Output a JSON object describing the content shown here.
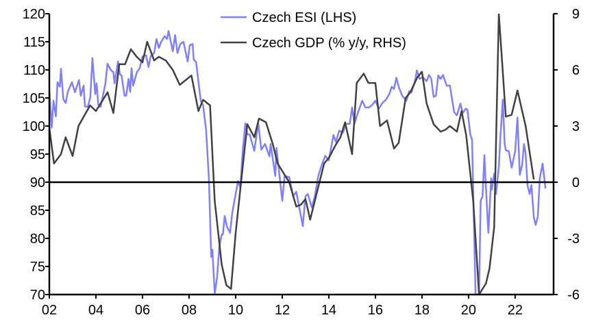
{
  "chart_data": {
    "type": "line",
    "title": "",
    "xlabel": "",
    "ylabel_left": "",
    "ylabel_right": "",
    "x_range": [
      2002.0,
      2023.65
    ],
    "x_tick_labels": [
      "02",
      "04",
      "06",
      "08",
      "10",
      "12",
      "14",
      "16",
      "18",
      "20",
      "22"
    ],
    "x_tick_years": [
      2002,
      2004,
      2006,
      2008,
      2010,
      2012,
      2014,
      2016,
      2018,
      2020,
      2022
    ],
    "y_left": {
      "range": [
        70,
        120
      ],
      "ticks": [
        70,
        75,
        80,
        85,
        90,
        95,
        100,
        105,
        110,
        115,
        120
      ],
      "tick_labels": [
        "70",
        "75",
        "80",
        "85",
        "90",
        "95",
        "100",
        "105",
        "110",
        "115",
        "120"
      ]
    },
    "y_right": {
      "range": [
        -6,
        9
      ],
      "ticks": [
        -6,
        -3,
        0,
        3,
        6,
        9
      ],
      "tick_labels": [
        "-6",
        "-3",
        "0",
        "3",
        "6",
        "9"
      ]
    },
    "reference_line": {
      "axis": "right",
      "value": 0
    },
    "grid": false,
    "legend_position": "top-center",
    "colors": {
      "esi": "#7F7FFF",
      "gdp": "#404040",
      "axis": "#000000"
    },
    "series": [
      {
        "name": "Czech ESI (LHS)",
        "axis": "left",
        "color": "#7F7FFF",
        "x": [
          2002.0,
          2002.1,
          2002.18,
          2002.28,
          2002.35,
          2002.45,
          2002.5,
          2002.6,
          2002.7,
          2002.8,
          2002.97,
          2003.1,
          2003.27,
          2003.35,
          2003.47,
          2003.53,
          2003.65,
          2003.76,
          2003.85,
          2003.97,
          2004.03,
          2004.1,
          2004.2,
          2004.4,
          2004.5,
          2004.65,
          2004.75,
          2004.8,
          2004.95,
          2005.03,
          2005.1,
          2005.23,
          2005.3,
          2005.4,
          2005.47,
          2005.53,
          2005.6,
          2005.76,
          2005.88,
          2006.0,
          2006.15,
          2006.26,
          2006.35,
          2006.5,
          2006.6,
          2006.7,
          2006.8,
          2006.95,
          2007.05,
          2007.12,
          2007.3,
          2007.4,
          2007.5,
          2007.62,
          2007.76,
          2007.94,
          2008.03,
          2008.15,
          2008.2,
          2008.3,
          2008.5,
          2008.6,
          2008.73,
          2008.85,
          2008.95,
          2009.0,
          2009.1,
          2009.2,
          2009.3,
          2009.4,
          2009.45,
          2009.53,
          2009.62,
          2009.76,
          2009.85,
          2010.03,
          2010.1,
          2010.2,
          2010.3,
          2010.42,
          2010.5,
          2010.6,
          2010.8,
          2010.97,
          2011.1,
          2011.26,
          2011.45,
          2011.5,
          2011.7,
          2011.75,
          2012.0,
          2012.1,
          2012.3,
          2012.47,
          2012.6,
          2012.73,
          2012.88,
          2013.0,
          2013.1,
          2013.27,
          2013.4,
          2013.55,
          2013.7,
          2013.85,
          2014.0,
          2014.2,
          2014.3,
          2014.45,
          2014.6,
          2014.75,
          2014.9,
          2015.0,
          2015.1,
          2015.25,
          2015.43,
          2015.57,
          2015.72,
          2015.85,
          2016.0,
          2016.15,
          2016.3,
          2016.45,
          2016.6,
          2016.7,
          2016.8,
          2016.9,
          2017.0,
          2017.15,
          2017.33,
          2017.45,
          2017.55,
          2017.7,
          2017.78,
          2017.9,
          2018.03,
          2018.2,
          2018.3,
          2018.4,
          2018.5,
          2018.6,
          2018.7,
          2018.8,
          2018.9,
          2019.06,
          2019.2,
          2019.38,
          2019.5,
          2019.65,
          2019.75,
          2019.88,
          2019.95,
          2020.08,
          2020.15,
          2020.3,
          2020.45,
          2020.52,
          2020.6,
          2020.68,
          2020.73,
          2020.85,
          2020.97,
          2021.0,
          2021.1,
          2021.18,
          2021.3,
          2021.37,
          2021.47,
          2021.55,
          2021.6,
          2021.73,
          2021.85,
          2022.0,
          2022.1,
          2022.2,
          2022.3,
          2022.38,
          2022.45,
          2022.53,
          2022.62,
          2022.7,
          2022.8,
          2022.88,
          2022.97,
          2023.06,
          2023.18,
          2023.3
        ],
        "values": [
          106.4,
          99.7,
          104.5,
          101.7,
          107.8,
          107,
          110.2,
          104.8,
          104.1,
          106.2,
          107.8,
          106,
          108.2,
          105.4,
          107.2,
          103.5,
          103.4,
          105.1,
          112.1,
          105.7,
          107.6,
          103.8,
          103.4,
          107.4,
          111.1,
          109.9,
          109.6,
          107.6,
          111.5,
          109.2,
          109,
          105.4,
          105.4,
          108.4,
          106.1,
          110.3,
          107.2,
          109.6,
          110.3,
          112.4,
          112.6,
          110.5,
          112.4,
          113,
          115.5,
          113.9,
          115,
          116,
          115.5,
          116.9,
          113.3,
          116.2,
          113,
          114.6,
          115,
          111.5,
          114.4,
          114.6,
          111.8,
          111.4,
          104.5,
          103.7,
          99.3,
          90.7,
          76.7,
          78,
          70.2,
          73,
          78.6,
          80.7,
          80.7,
          84,
          82.2,
          81,
          84.5,
          88.6,
          90.2,
          89,
          95.5,
          100.5,
          98.5,
          98.5,
          95.6,
          100.5,
          95.8,
          96.8,
          94.6,
          96.8,
          91.1,
          96.1,
          86.7,
          91.1,
          90.9,
          87.5,
          88.3,
          85.5,
          82.2,
          87.5,
          87.9,
          85.5,
          87.5,
          91.1,
          93.1,
          94.7,
          93.9,
          98.4,
          97.2,
          99.2,
          98.8,
          100.4,
          100.4,
          103.3,
          100.4,
          102.4,
          104.5,
          103.3,
          103.3,
          103.7,
          104.5,
          103.1,
          104.1,
          104.7,
          105.7,
          107,
          106.6,
          108.6,
          107,
          105.4,
          104.5,
          106.2,
          106,
          108,
          109.9,
          108.4,
          108.7,
          108,
          109.1,
          108.4,
          105.2,
          105.4,
          109,
          108.4,
          109.1,
          107.2,
          107.2,
          102.5,
          101.9,
          104,
          102.3,
          103.1,
          102.9,
          98.4,
          97.6,
          62,
          65,
          86.7,
          87.5,
          94.8,
          90.3,
          81,
          90.7,
          88.7,
          91.5,
          87.9,
          92.8,
          98.4,
          104.7,
          96.8,
          95.7,
          95.5,
          92.6,
          95.5,
          101.5,
          91.3,
          93.1,
          96.8,
          95.1,
          89.5,
          87.9,
          89.5,
          83.8,
          82.4,
          83.8,
          90.7,
          93.3,
          88.9
        ]
      },
      {
        "name": "Czech GDP (% y/y, RHS)",
        "axis": "right",
        "color": "#404040",
        "x": [
          2002.0,
          2002.2,
          2002.5,
          2002.7,
          2003.0,
          2003.25,
          2003.75,
          2004.0,
          2004.5,
          2004.75,
          2005.0,
          2005.25,
          2005.5,
          2005.75,
          2006.0,
          2006.2,
          2006.5,
          2006.7,
          2007.0,
          2007.3,
          2007.6,
          2008.1,
          2008.4,
          2008.6,
          2008.9,
          2009.1,
          2009.4,
          2009.6,
          2009.8,
          2010.0,
          2010.3,
          2010.5,
          2010.8,
          2011.0,
          2011.3,
          2011.6,
          2011.8,
          2012.1,
          2012.3,
          2012.6,
          2012.8,
          2013.0,
          2013.2,
          2013.5,
          2013.8,
          2014.0,
          2014.3,
          2014.5,
          2014.7,
          2015.0,
          2015.2,
          2015.5,
          2015.7,
          2016.0,
          2016.2,
          2016.5,
          2016.8,
          2017.0,
          2017.3,
          2017.5,
          2017.8,
          2018.0,
          2018.2,
          2018.5,
          2018.8,
          2019.0,
          2019.2,
          2019.5,
          2019.7,
          2019.9,
          2020.2,
          2020.45,
          2020.75,
          2020.9,
          2021.1,
          2021.3,
          2021.6,
          2021.85,
          2022.1,
          2022.45,
          2022.8
        ],
        "values": [
          2.9,
          1.0,
          1.5,
          2.4,
          1.4,
          3.0,
          4.1,
          3.8,
          4.8,
          3.7,
          6.3,
          6.3,
          7.1,
          6.7,
          6.4,
          7.5,
          6.5,
          6.7,
          6.5,
          6.0,
          5.2,
          5.7,
          3.8,
          4.4,
          4.1,
          -1.0,
          -4.4,
          -5.5,
          -5.7,
          -2.7,
          0.8,
          3.1,
          2.4,
          3.4,
          3.2,
          2.0,
          1.0,
          0.4,
          0.0,
          -1.3,
          -1.2,
          -0.9,
          -2.0,
          -0.5,
          1.0,
          1.3,
          2.0,
          2.4,
          3.2,
          1.5,
          5.3,
          5.8,
          5.3,
          5.3,
          3.0,
          3.3,
          1.8,
          2.1,
          4.5,
          4.8,
          5.6,
          5.9,
          4.2,
          3.1,
          2.7,
          2.8,
          3.0,
          2.7,
          3.8,
          2.5,
          -1.0,
          -10.9,
          -5.4,
          -4.6,
          -2.4,
          9.0,
          3.5,
          3.6,
          4.9,
          3.0,
          0.15
        ]
      }
    ]
  }
}
